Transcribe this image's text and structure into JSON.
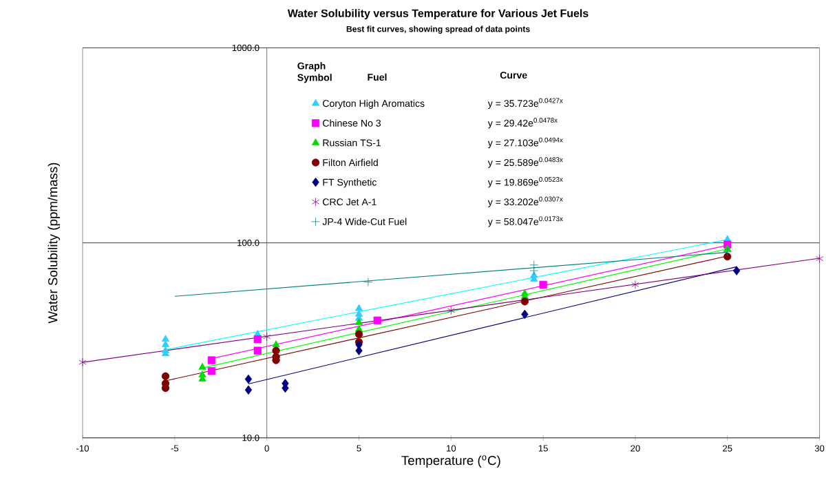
{
  "chart_data": {
    "type": "scatter",
    "title": "Water Solubility versus Temperature for Various Jet Fuels",
    "subtitle": "Best fit curves, showing spread of data points",
    "xlabel": "Temperature ($^{o}$C)",
    "ylabel": "Water Solubility (ppm/mass)",
    "xlim": [
      -10,
      30
    ],
    "xticks": [
      -10,
      -5,
      0,
      5,
      10,
      15,
      20,
      25,
      30
    ],
    "ylim": [
      10,
      1000
    ],
    "yticks": [
      {
        "value": 10,
        "label": "10.0"
      },
      {
        "value": 100,
        "label": "100.0"
      },
      {
        "value": 1000,
        "label": "1000.0"
      }
    ],
    "log": "y",
    "grid": "y",
    "legend": "top",
    "annotations": [
      "Graph Symbol",
      "Fuel",
      "Curve",
      "y = 35.723e$^{0.0427x}$",
      "y = 29.42e$^{0.0478x}$",
      "y = 27.103e$^{0.0494x}$",
      "y = 25.589e$^{0.0483x}$",
      "y = 19.869e$^{0.0523x}$",
      "y = 33.202e$^{0.0307x}$",
      "y = 58.047e$^{0.0173x}$"
    ],
    "series": [
      {
        "name": "Coryton High Aromatics",
        "marker": "triangle",
        "color": "#33ccff",
        "x": [
          -5.5,
          -5.5,
          -5.5,
          -5.5,
          -0.5,
          5,
          5,
          5,
          14.5,
          14.5,
          25
        ],
        "values": [
          32,
          30,
          28,
          27,
          34,
          46,
          43,
          41,
          68,
          65,
          104
        ]
      },
      {
        "name": "Chinese No 3",
        "marker": "square",
        "color": "#ff00ff",
        "x": [
          -3,
          -3,
          -0.5,
          -0.5,
          6,
          15,
          25
        ],
        "values": [
          25,
          22,
          32,
          28,
          40,
          61,
          98
        ]
      },
      {
        "name": "Russian TS-1",
        "marker": "triangle",
        "color": "#00dd00",
        "x": [
          -3.5,
          -3.5,
          -3.5,
          0.5,
          5,
          5,
          14,
          14,
          25
        ],
        "values": [
          23,
          21,
          20,
          30,
          39,
          36,
          55,
          53,
          93
        ]
      },
      {
        "name": "Filton Airfield",
        "marker": "circle",
        "color": "#800000",
        "x": [
          -5.5,
          -5.5,
          -5.5,
          0.5,
          0.5,
          0.5,
          5,
          5,
          14,
          25
        ],
        "values": [
          20.7,
          19,
          18,
          28,
          26,
          25,
          34,
          31,
          50,
          85
        ]
      },
      {
        "name": "FT Synthetic",
        "marker": "diamond",
        "color": "#000080",
        "x": [
          -1,
          -1,
          1,
          1,
          5,
          5,
          14,
          25.5
        ],
        "values": [
          20,
          17.6,
          19,
          18,
          30,
          28,
          43,
          72
        ]
      },
      {
        "name": "CRC Jet A-1",
        "color": "#800080",
        "x": [
          -10,
          0,
          10,
          20,
          30
        ],
        "values": [
          24.4,
          33,
          45,
          61,
          83
        ]
      },
      {
        "name": "JP-4 Wide-Cut Fuel",
        "marker": "cross",
        "color": "#008080",
        "x": [
          5.5,
          14.5,
          14.5,
          25
        ],
        "values": [
          63,
          77,
          72,
          90
        ]
      },
      {
        "type": "line",
        "marker": "none",
        "color": "#00ffff",
        "x": [
          -5.5,
          25
        ],
        "values": [
          28.3,
          103.9
        ]
      },
      {
        "type": "line",
        "marker": "none",
        "color": "#ff00ff",
        "x": [
          -3,
          25
        ],
        "values": [
          25.5,
          97.2
        ]
      },
      {
        "type": "line",
        "marker": "none",
        "color": "#00ff00",
        "x": [
          -3.5,
          25
        ],
        "values": [
          22.8,
          93.2
        ]
      },
      {
        "type": "line",
        "marker": "none",
        "color": "#800000",
        "x": [
          -5.5,
          25
        ],
        "values": [
          19.6,
          85.6
        ]
      },
      {
        "type": "line",
        "marker": "none",
        "color": "#000080",
        "x": [
          -1,
          25.5
        ],
        "values": [
          18.9,
          75.4
        ]
      },
      {
        "type": "line",
        "marker": "none",
        "color": "#800080",
        "x": [
          -10,
          30
        ],
        "values": [
          24.4,
          83.4
        ]
      },
      {
        "type": "line",
        "marker": "none",
        "color": "#008080",
        "x": [
          -5,
          25
        ],
        "values": [
          53.2,
          89.4
        ]
      }
    ]
  }
}
